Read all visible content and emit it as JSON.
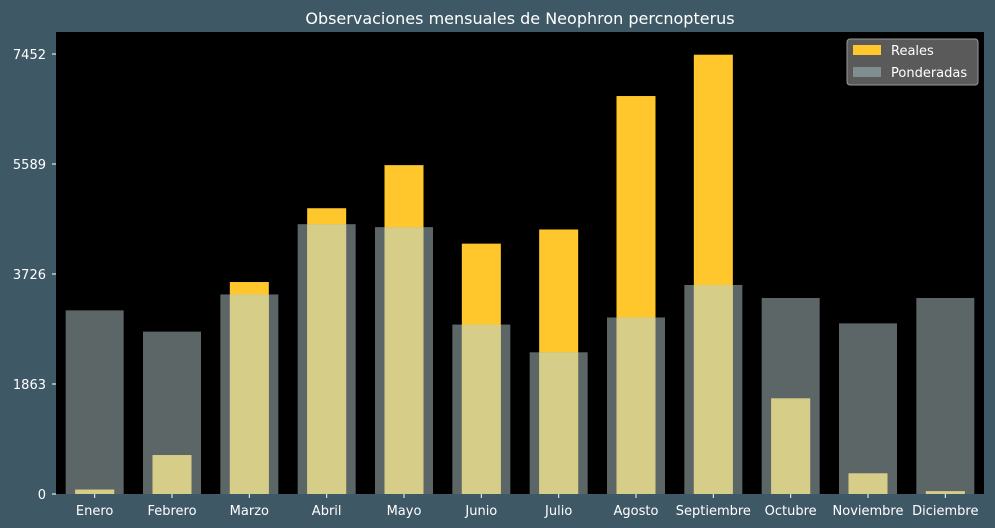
{
  "chart_data": {
    "type": "bar",
    "title": "Observaciones mensuales de Neophron percnopterus",
    "xlabel": "",
    "ylabel": "",
    "categories": [
      "Enero",
      "Febrero",
      "Marzo",
      "Abril",
      "Mayo",
      "Junio",
      "Julio",
      "Agosto",
      "Septiembre",
      "Octubre",
      "Noviembre",
      "Diciembre"
    ],
    "series": [
      {
        "name": "Reales",
        "color": "#ffc72c",
        "values": [
          76,
          660,
          3590,
          4840,
          5570,
          4240,
          4480,
          6740,
          7440,
          1620,
          350,
          48
        ]
      },
      {
        "name": "Ponderadas",
        "color": "#7f8e8e",
        "values": [
          3110,
          2750,
          3380,
          4570,
          4520,
          2870,
          2400,
          2990,
          3540,
          3320,
          2890,
          3320
        ]
      }
    ],
    "ylim": [
      0,
      7452
    ],
    "yticks": [
      "0",
      "1863",
      "3726",
      "5589",
      "7452"
    ],
    "grid": false,
    "legend": "top-right",
    "colors": {
      "background": "#3f5866",
      "plot_background": "#000000",
      "overlap": "#d6cd88"
    }
  }
}
